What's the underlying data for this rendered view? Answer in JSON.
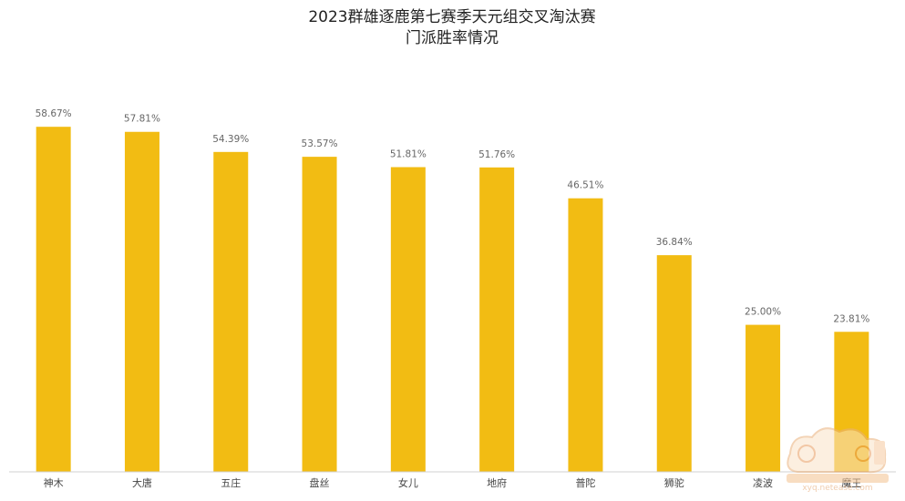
{
  "chart_data": {
    "type": "bar",
    "title": [
      "2023群雄逐鹿第七赛季天元组交叉淘汰赛",
      "门派胜率情况"
    ],
    "categories": [
      "神木",
      "大唐",
      "五庄",
      "盘丝",
      "女儿",
      "地府",
      "普陀",
      "狮驼",
      "凌波",
      "魔王"
    ],
    "values": [
      58.67,
      57.81,
      54.39,
      53.57,
      51.81,
      51.76,
      46.51,
      36.84,
      25.0,
      23.81
    ],
    "value_labels": [
      "58.67%",
      "57.81%",
      "54.39%",
      "53.57%",
      "51.81%",
      "51.76%",
      "46.51%",
      "36.84%",
      "25.00%",
      "23.81%"
    ],
    "ylim": [
      0,
      63.5
    ],
    "bar_color": "#F2BC13",
    "grid": false,
    "legend": "none"
  },
  "watermark": {
    "url_text": "xyq.netease.com"
  }
}
